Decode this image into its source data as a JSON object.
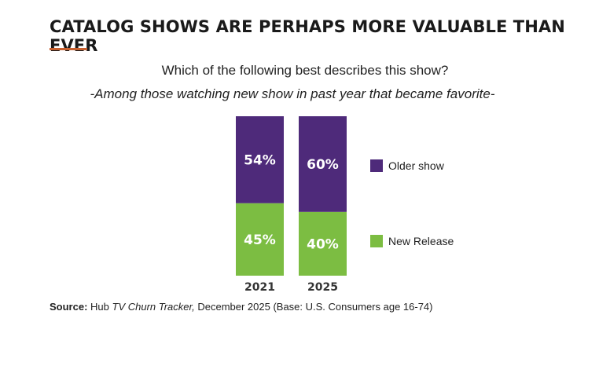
{
  "title": "CATALOG SHOWS ARE PERHAPS MORE VALUABLE THAN EVER",
  "question": "Which of the following best describes this show?",
  "subtitle": "-Among those watching new show in past year that became favorite-",
  "source": {
    "label": "Source:",
    "publication": "Hub ",
    "publication_italic": "TV Churn Tracker,",
    "details": " December 2025 (Base: U.S. Consumers age 16-74)"
  },
  "colors": {
    "older": "#4e2a7a",
    "new": "#7cbd42",
    "accent": "#c8602f"
  },
  "chart_data": {
    "type": "bar",
    "stacked": true,
    "categories": [
      "2021",
      "2025"
    ],
    "series": [
      {
        "name": "New Release",
        "values": [
          45,
          40
        ],
        "labels": [
          "45%",
          "40%"
        ]
      },
      {
        "name": "Older show",
        "values": [
          54,
          60
        ],
        "labels": [
          "54%",
          "60%"
        ]
      }
    ],
    "legend": [
      "Older show",
      "New Release"
    ],
    "ylim": [
      0,
      100
    ]
  }
}
